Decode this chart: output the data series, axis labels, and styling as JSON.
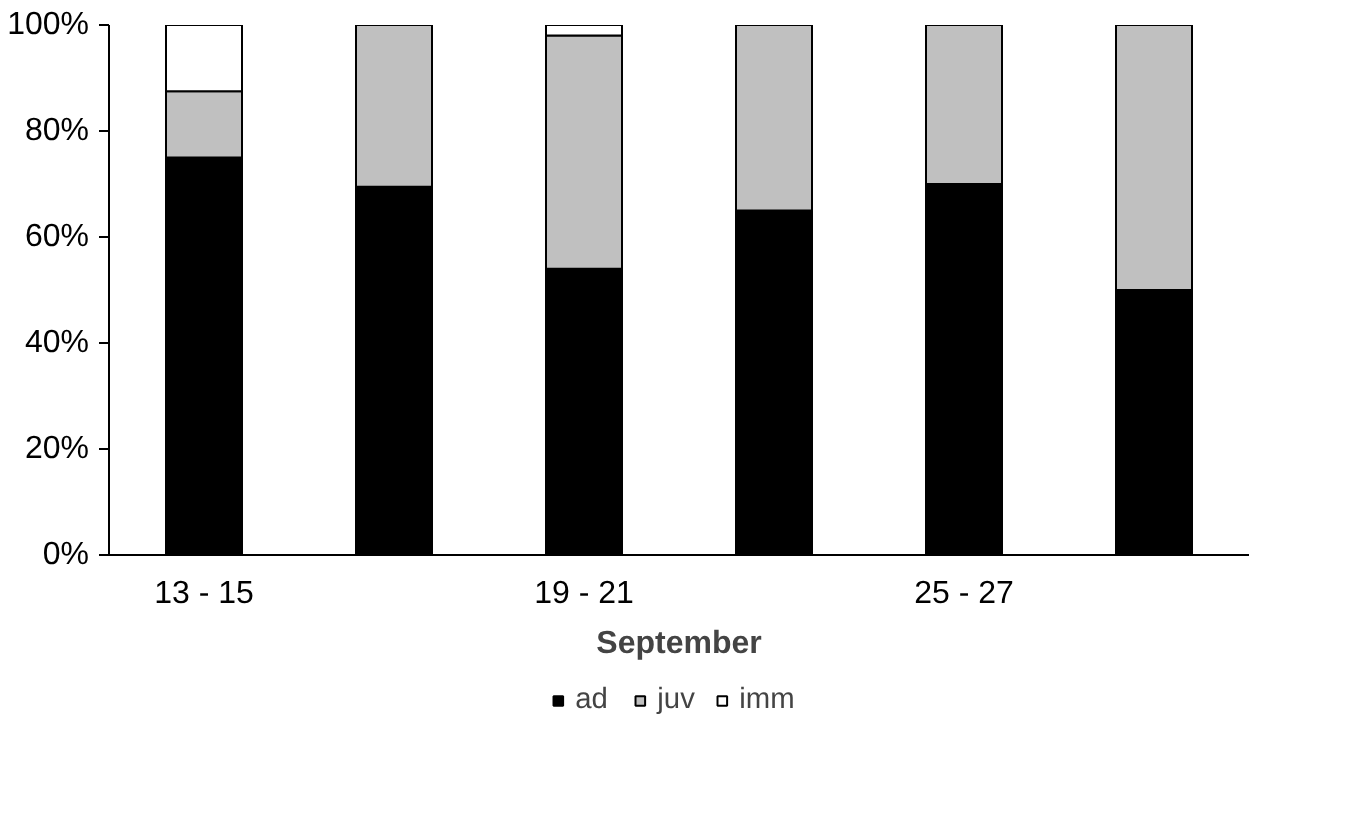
{
  "chart_data": {
    "type": "bar",
    "stacked": true,
    "xlabel": "September",
    "categories": [
      "13 - 15",
      null,
      "19 - 21",
      null,
      "25 - 27",
      null
    ],
    "series": [
      {
        "name": "ad",
        "color": "#000000",
        "values": [
          75,
          69.5,
          54,
          65,
          70,
          50
        ]
      },
      {
        "name": "juv",
        "color": "#c0c0c0",
        "values": [
          12.5,
          30.5,
          44,
          35,
          30,
          50
        ]
      },
      {
        "name": "imm",
        "color": "#ffffff",
        "values": [
          12.5,
          0,
          2,
          0,
          0,
          0
        ]
      }
    ],
    "ylim": [
      0,
      100
    ],
    "yticks": [
      {
        "value": 0,
        "label": "0%"
      },
      {
        "value": 20,
        "label": "20%"
      },
      {
        "value": 40,
        "label": "40%"
      },
      {
        "value": 60,
        "label": "60%"
      },
      {
        "value": 80,
        "label": "80%"
      },
      {
        "value": 100,
        "label": "100%"
      }
    ],
    "grid": false,
    "legend": "bottom"
  }
}
